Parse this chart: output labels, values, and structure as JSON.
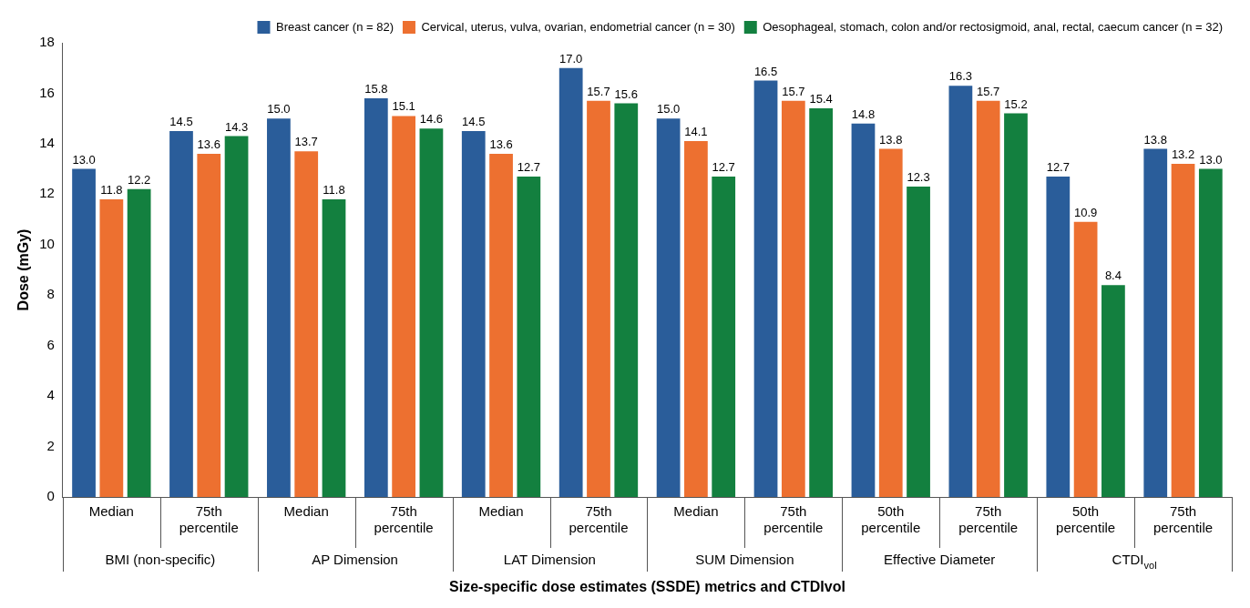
{
  "chart_data": {
    "type": "bar",
    "xlabel": "Size-specific dose estimates (SSDE) metrics and CTDIvol",
    "ylabel": "Dose (mGy)",
    "categories": [
      "Median",
      "75th percentile",
      "Median",
      "75th percentile",
      "Median",
      "75th percentile",
      "Median",
      "75th percentile",
      "50th percentile",
      "75th percentile",
      "50th percentile",
      "75th percentile"
    ],
    "annotations": [
      "BMI (non-specific)",
      "AP Dimension",
      "LAT Dimension",
      "SUM Dimension",
      "Effective Diameter",
      "CTDI$_{vol}$"
    ],
    "ylim": [
      0,
      18
    ],
    "yticks": [
      0,
      2,
      4,
      6,
      8,
      10,
      12,
      14,
      16,
      18
    ],
    "grid": false,
    "legend": "top right",
    "series": [
      {
        "name": "Breast cancer (n = 82)",
        "color": "#2a5d9a",
        "values": [
          13.0,
          14.5,
          15.0,
          15.8,
          14.5,
          17.0,
          15.0,
          16.5,
          14.8,
          16.3,
          12.7,
          13.8
        ],
        "value_labels": [
          "13.0",
          "14.5",
          "15.0",
          "15.8",
          "14.5",
          "17.0",
          "15.0",
          "16.5",
          "14.8",
          "16.3",
          "12.7",
          "13.8"
        ]
      },
      {
        "name": "Cervical, uterus, vulva, ovarian, endometrial cancer (n = 30)",
        "color": "#ed7030",
        "values": [
          11.8,
          13.6,
          13.7,
          15.1,
          13.6,
          15.7,
          14.1,
          15.7,
          13.8,
          15.7,
          10.9,
          13.2
        ],
        "value_labels": [
          "11.8",
          "13.6",
          "13.7",
          "15.1",
          "13.6",
          "15.7",
          "14.1",
          "15.7",
          "13.8",
          "15.7",
          "10.9",
          "13.2"
        ]
      },
      {
        "name": "Oesophageal, stomach, colon and/or rectosigmoid, anal, rectal, caecum cancer (n = 32)",
        "color": "#13803f",
        "values": [
          12.2,
          14.3,
          11.8,
          14.6,
          12.7,
          15.6,
          12.7,
          15.4,
          12.3,
          15.2,
          8.4,
          13.0
        ],
        "value_labels": [
          "12.2",
          "14.3",
          "11.8",
          "14.6",
          "12.7",
          "15.6",
          "12.7",
          "15.4",
          "12.3",
          "15.2",
          "8.4",
          "13.0"
        ]
      }
    ]
  }
}
